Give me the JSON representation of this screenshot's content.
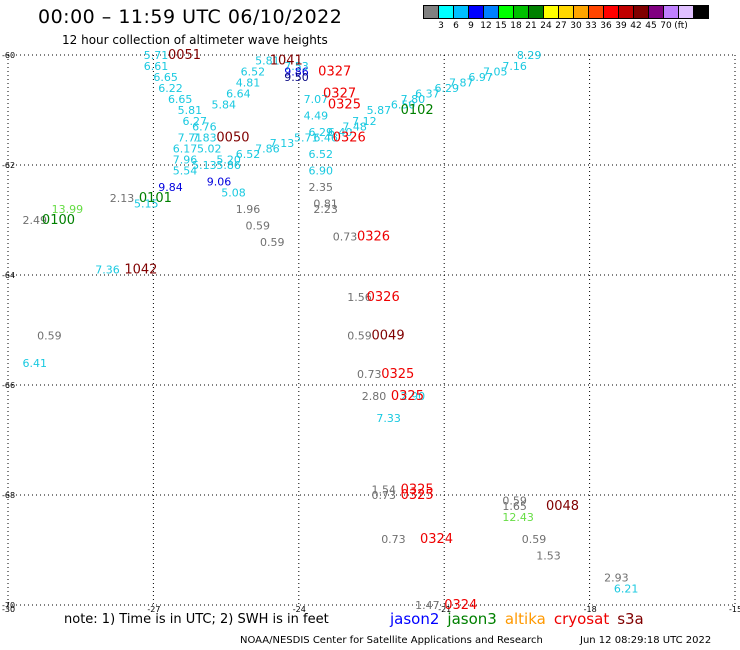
{
  "header": {
    "title": "00:00 – 11:59 UTC 06/10/2022",
    "subtitle": "12 hour collection of altimeter wave heights"
  },
  "legend": {
    "colors": [
      "#808080",
      "#00ffff",
      "#00bfff",
      "#0000ff",
      "#0080ff",
      "#00ff00",
      "#00c000",
      "#008000",
      "#ffff00",
      "#ffd700",
      "#ffa500",
      "#ff4500",
      "#ff0000",
      "#c00000",
      "#800000",
      "#800080",
      "#c080ff",
      "#e0c0ff",
      "#000000"
    ],
    "labels": [
      "3",
      "6",
      "9",
      "12",
      "15",
      "18",
      "21",
      "24",
      "27",
      "30",
      "33",
      "36",
      "39",
      "42",
      "45",
      "70",
      "(ft)"
    ]
  },
  "axes": {
    "lat_labels": [
      "-60",
      "-62",
      "-64",
      "-66",
      "-68",
      "-70"
    ],
    "lon_labels": [
      "-30",
      "-27",
      "-24",
      "-21",
      "-18",
      "-15"
    ]
  },
  "observations": [
    {
      "t": "5.71",
      "c": "#19c9e0",
      "lat": -60.0,
      "lon": -27.2
    },
    {
      "t": "6.61",
      "c": "#19c9e0",
      "lat": -60.2,
      "lon": -27.2
    },
    {
      "t": "6.65",
      "c": "#19c9e0",
      "lat": -60.4,
      "lon": -27.0
    },
    {
      "t": "6.22",
      "c": "#19c9e0",
      "lat": -60.6,
      "lon": -26.9
    },
    {
      "t": "6.65",
      "c": "#19c9e0",
      "lat": -60.8,
      "lon": -26.7
    },
    {
      "t": "5.81",
      "c": "#19c9e0",
      "lat": -61.0,
      "lon": -26.5
    },
    {
      "t": "6.27",
      "c": "#19c9e0",
      "lat": -61.2,
      "lon": -26.4
    },
    {
      "t": "6.76",
      "c": "#19c9e0",
      "lat": -61.3,
      "lon": -26.2
    },
    {
      "t": "7.83",
      "c": "#19c9e0",
      "lat": -61.5,
      "lon": -26.2
    },
    {
      "t": "7.71",
      "c": "#19c9e0",
      "lat": -61.5,
      "lon": -26.5
    },
    {
      "t": "6.17",
      "c": "#19c9e0",
      "lat": -61.7,
      "lon": -26.6
    },
    {
      "t": "7.96",
      "c": "#19c9e0",
      "lat": -61.9,
      "lon": -26.6
    },
    {
      "t": "5.02",
      "c": "#19c9e0",
      "lat": -61.7,
      "lon": -26.1
    },
    {
      "t": "5.13",
      "c": "#19c9e0",
      "lat": -62.0,
      "lon": -26.2
    },
    {
      "t": "5.54",
      "c": "#19c9e0",
      "lat": -62.1,
      "lon": -26.6
    },
    {
      "t": "5.86",
      "c": "#19c9e0",
      "lat": -62.0,
      "lon": -25.7
    },
    {
      "t": "5.20",
      "c": "#19c9e0",
      "lat": -61.9,
      "lon": -25.7
    },
    {
      "t": "6.52",
      "c": "#19c9e0",
      "lat": -61.8,
      "lon": -25.3
    },
    {
      "t": "7.86",
      "c": "#19c9e0",
      "lat": -61.7,
      "lon": -24.9
    },
    {
      "t": "7.13",
      "c": "#19c9e0",
      "lat": -61.6,
      "lon": -24.6
    },
    {
      "t": "5.71",
      "c": "#19c9e0",
      "lat": -61.5,
      "lon": -24.1
    },
    {
      "t": "5.84",
      "c": "#19c9e0",
      "lat": -60.9,
      "lon": -25.8
    },
    {
      "t": "6.64",
      "c": "#19c9e0",
      "lat": -60.7,
      "lon": -25.5
    },
    {
      "t": "4.81",
      "c": "#19c9e0",
      "lat": -60.5,
      "lon": -25.3
    },
    {
      "t": "6.52",
      "c": "#19c9e0",
      "lat": -60.3,
      "lon": -25.2
    },
    {
      "t": "5.81",
      "c": "#19c9e0",
      "lat": -60.1,
      "lon": -24.9
    },
    {
      "t": "5.08",
      "c": "#19c9e0",
      "lat": -62.5,
      "lon": -25.6
    },
    {
      "t": "5.15",
      "c": "#19c9e0",
      "lat": -62.7,
      "lon": -27.4
    },
    {
      "t": "7.36",
      "c": "#19c9e0",
      "lat": -63.9,
      "lon": -28.2
    },
    {
      "t": "6.41",
      "c": "#19c9e0",
      "lat": -65.6,
      "lon": -29.7
    },
    {
      "t": "7.07",
      "c": "#19c9e0",
      "lat": -60.8,
      "lon": -23.9
    },
    {
      "t": "4.49",
      "c": "#19c9e0",
      "lat": -61.1,
      "lon": -23.9
    },
    {
      "t": "6.29",
      "c": "#19c9e0",
      "lat": -61.4,
      "lon": -23.8
    },
    {
      "t": "6.46",
      "c": "#19c9e0",
      "lat": -61.5,
      "lon": -23.7
    },
    {
      "t": "6.52",
      "c": "#19c9e0",
      "lat": -61.8,
      "lon": -23.8
    },
    {
      "t": "6.40",
      "c": "#19c9e0",
      "lat": -61.4,
      "lon": -23.4
    },
    {
      "t": "7.48",
      "c": "#19c9e0",
      "lat": -61.3,
      "lon": -23.1
    },
    {
      "t": "7.12",
      "c": "#19c9e0",
      "lat": -61.2,
      "lon": -22.9
    },
    {
      "t": "5.87",
      "c": "#19c9e0",
      "lat": -61.0,
      "lon": -22.6
    },
    {
      "t": "6.50",
      "c": "#19c9e0",
      "lat": -60.9,
      "lon": -22.1
    },
    {
      "t": "7.80",
      "c": "#19c9e0",
      "lat": -60.8,
      "lon": -21.9
    },
    {
      "t": "6.37",
      "c": "#19c9e0",
      "lat": -60.7,
      "lon": -21.6
    },
    {
      "t": "6.29",
      "c": "#19c9e0",
      "lat": -60.6,
      "lon": -21.2
    },
    {
      "t": "7.87",
      "c": "#19c9e0",
      "lat": -60.5,
      "lon": -20.9
    },
    {
      "t": "6.97",
      "c": "#19c9e0",
      "lat": -60.4,
      "lon": -20.5
    },
    {
      "t": "7.05",
      "c": "#19c9e0",
      "lat": -60.3,
      "lon": -20.2
    },
    {
      "t": "7.16",
      "c": "#19c9e0",
      "lat": -60.2,
      "lon": -19.8
    },
    {
      "t": "8.29",
      "c": "#19c9e0",
      "lat": -60.0,
      "lon": -19.5
    },
    {
      "t": "7.33",
      "c": "#19c9e0",
      "lat": -66.6,
      "lon": -22.4
    },
    {
      "t": "6.21",
      "c": "#19c9e0",
      "lat": -69.7,
      "lon": -17.5
    },
    {
      "t": "2.90",
      "c": "#19c9e0",
      "lat": -66.2,
      "lon": -21.9
    },
    {
      "t": "6.90",
      "c": "#19c9e0",
      "lat": -62.1,
      "lon": -23.8
    },
    {
      "t": "7.53",
      "c": "#19c9e0",
      "lat": -60.2,
      "lon": -24.3
    },
    {
      "t": "9.86",
      "c": "#0000dd",
      "lat": -60.3,
      "lon": -24.3
    },
    {
      "t": "9.50",
      "c": "#000080",
      "lat": -60.4,
      "lon": -24.3
    },
    {
      "t": "9.84",
      "c": "#0000dd",
      "lat": -62.4,
      "lon": -26.9
    },
    {
      "t": "9.06",
      "c": "#0000dd",
      "lat": -62.3,
      "lon": -25.9
    },
    {
      "t": "13.99",
      "c": "#66dd44",
      "lat": -62.8,
      "lon": -29.1
    },
    {
      "t": "12.43",
      "c": "#66dd44",
      "lat": -68.4,
      "lon": -19.8
    },
    {
      "t": "2.13",
      "c": "#707070",
      "lat": -62.6,
      "lon": -27.9
    },
    {
      "t": "2.49",
      "c": "#707070",
      "lat": -63.0,
      "lon": -29.7
    },
    {
      "t": "1.96",
      "c": "#707070",
      "lat": -62.8,
      "lon": -25.3
    },
    {
      "t": "0.59",
      "c": "#707070",
      "lat": -63.1,
      "lon": -25.1
    },
    {
      "t": "0.59",
      "c": "#707070",
      "lat": -63.4,
      "lon": -24.8
    },
    {
      "t": "2.35",
      "c": "#707070",
      "lat": -62.4,
      "lon": -23.8
    },
    {
      "t": "0.81",
      "c": "#707070",
      "lat": -62.7,
      "lon": -23.7
    },
    {
      "t": "2.23",
      "c": "#707070",
      "lat": -62.8,
      "lon": -23.7
    },
    {
      "t": "0.73",
      "c": "#707070",
      "lat": -63.3,
      "lon": -23.3
    },
    {
      "t": "1.56",
      "c": "#707070",
      "lat": -64.4,
      "lon": -23.0
    },
    {
      "t": "0.59",
      "c": "#707070",
      "lat": -65.1,
      "lon": -23.0
    },
    {
      "t": "0.73",
      "c": "#707070",
      "lat": -65.8,
      "lon": -22.8
    },
    {
      "t": "2.80",
      "c": "#707070",
      "lat": -66.2,
      "lon": -22.7
    },
    {
      "t": "1.54",
      "c": "#707070",
      "lat": -67.9,
      "lon": -22.5
    },
    {
      "t": "0.73",
      "c": "#707070",
      "lat": -68.0,
      "lon": -22.5
    },
    {
      "t": "0.73",
      "c": "#707070",
      "lat": -68.8,
      "lon": -22.3
    },
    {
      "t": "0.59",
      "c": "#707070",
      "lat": -65.1,
      "lon": -29.4
    },
    {
      "t": "0.59",
      "c": "#707070",
      "lat": -68.1,
      "lon": -19.8
    },
    {
      "t": "1.65",
      "c": "#707070",
      "lat": -68.2,
      "lon": -19.8
    },
    {
      "t": "0.59",
      "c": "#707070",
      "lat": -68.8,
      "lon": -19.4
    },
    {
      "t": "1.53",
      "c": "#707070",
      "lat": -69.1,
      "lon": -19.1
    },
    {
      "t": "2.93",
      "c": "#707070",
      "lat": -69.5,
      "lon": -17.7
    },
    {
      "t": "1.47",
      "c": "#707070",
      "lat": -70.0,
      "lon": -21.6
    },
    {
      "t": "0051",
      "c": "#800000",
      "lat": -60.0,
      "lon": -26.7,
      "big": true
    },
    {
      "t": "1041",
      "c": "#800000",
      "lat": -60.1,
      "lon": -24.6,
      "big": true
    },
    {
      "t": "0050",
      "c": "#800000",
      "lat": -61.5,
      "lon": -25.7,
      "big": true
    },
    {
      "t": "0101",
      "c": "#008000",
      "lat": -62.6,
      "lon": -27.3,
      "big": true
    },
    {
      "t": "0100",
      "c": "#008000",
      "lat": -63.0,
      "lon": -29.3,
      "big": true
    },
    {
      "t": "1042",
      "c": "#800000",
      "lat": -63.9,
      "lon": -27.6,
      "big": true
    },
    {
      "t": "0102",
      "c": "#008000",
      "lat": -61.0,
      "lon": -21.9,
      "big": true
    },
    {
      "t": "0327",
      "c": "#ee0000",
      "lat": -60.3,
      "lon": -23.6,
      "big": true
    },
    {
      "t": "0327",
      "c": "#ee0000",
      "lat": -60.7,
      "lon": -23.5,
      "big": true
    },
    {
      "t": "0325",
      "c": "#ee0000",
      "lat": -60.9,
      "lon": -23.4,
      "big": true
    },
    {
      "t": "0326",
      "c": "#ee0000",
      "lat": -61.5,
      "lon": -23.3,
      "big": true
    },
    {
      "t": "0326",
      "c": "#ee0000",
      "lat": -63.3,
      "lon": -22.8,
      "big": true
    },
    {
      "t": "0326",
      "c": "#ee0000",
      "lat": -64.4,
      "lon": -22.6,
      "big": true
    },
    {
      "t": "0049",
      "c": "#800000",
      "lat": -65.1,
      "lon": -22.5,
      "big": true
    },
    {
      "t": "0325",
      "c": "#ee0000",
      "lat": -65.8,
      "lon": -22.3,
      "big": true
    },
    {
      "t": "0325",
      "c": "#ee0000",
      "lat": -66.2,
      "lon": -22.1,
      "big": true
    },
    {
      "t": "0325",
      "c": "#ee0000",
      "lat": -67.9,
      "lon": -21.9,
      "big": true
    },
    {
      "t": "0325",
      "c": "#ee0000",
      "lat": -68.0,
      "lon": -21.9,
      "big": true
    },
    {
      "t": "0324",
      "c": "#ee0000",
      "lat": -68.8,
      "lon": -21.5,
      "big": true
    },
    {
      "t": "0048",
      "c": "#800000",
      "lat": -68.2,
      "lon": -18.9,
      "big": true
    },
    {
      "t": "0324",
      "c": "#ee0000",
      "lat": -70.0,
      "lon": -21.0,
      "big": true
    }
  ],
  "footer": {
    "note": "note:  1) Time is in UTC;  2) SWH is in feet",
    "satellites": [
      {
        "name": "jason2",
        "color": "#0000ff"
      },
      {
        "name": "jason3",
        "color": "#008000"
      },
      {
        "name": "altika",
        "color": "#ff9900"
      },
      {
        "name": "cryosat",
        "color": "#ee0000"
      },
      {
        "name": "s3a",
        "color": "#800000"
      }
    ],
    "credit": "NOAA/NESDIS Center for Satellite Applications and Research",
    "generated": "Jun 12 08:29:18 UTC 2022"
  }
}
